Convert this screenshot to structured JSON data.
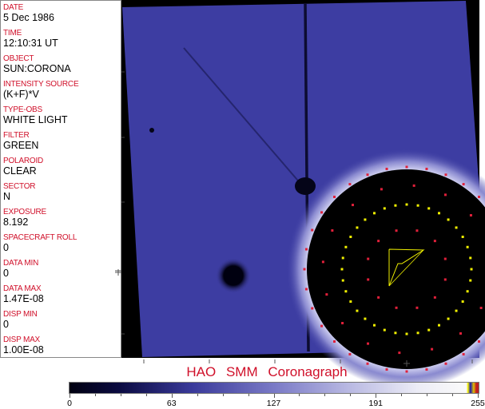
{
  "fields": [
    {
      "label": "DATE",
      "value": "5 Dec 1986"
    },
    {
      "label": "TIME",
      "value": "12:10:31 UT"
    },
    {
      "label": "OBJECT",
      "value": "SUN:CORONA"
    },
    {
      "label": "INTENSITY SOURCE",
      "value": "(K+F)*V"
    },
    {
      "label": "TYPE-OBS",
      "value": "WHITE LIGHT"
    },
    {
      "label": "FILTER",
      "value": "GREEN"
    },
    {
      "label": "POLAROID",
      "value": "CLEAR"
    },
    {
      "label": "SECTOR",
      "value": "N"
    },
    {
      "label": "EXPOSURE",
      "value": "8.192"
    },
    {
      "label": "SPACECRAFT ROLL",
      "value": "0"
    },
    {
      "label": "DATA MIN",
      "value": "0"
    },
    {
      "label": "DATA MAX",
      "value": "1.47E-08"
    },
    {
      "label": "DISP MIN",
      "value": "0"
    },
    {
      "label": "DISP MAX",
      "value": "1.00E-08"
    }
  ],
  "title": "HAO  SMM Coronagraph",
  "colorbar": {
    "ticks": [
      "0",
      "63",
      "127",
      "191",
      "255"
    ],
    "colormap": "black-blue-white"
  },
  "colors": {
    "label": "#d0102a",
    "image_blue": "#3c3ca0",
    "grid_red": "#e0203a",
    "grid_yellow": "#f0f000"
  }
}
